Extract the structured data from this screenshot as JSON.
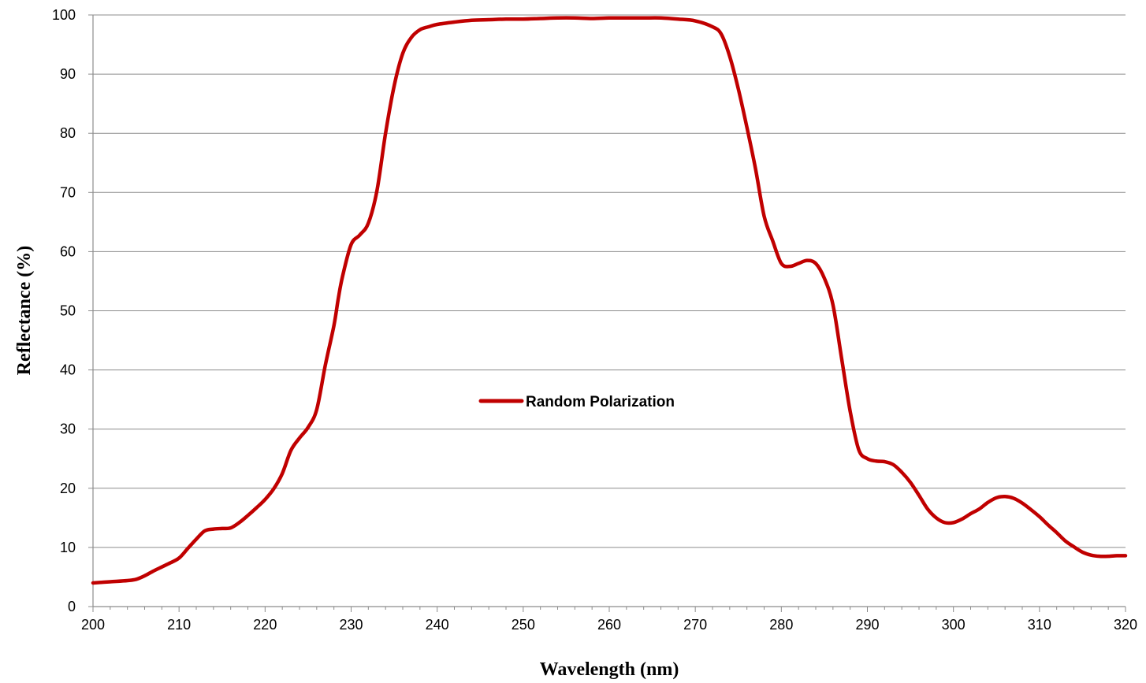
{
  "chart_data": {
    "type": "line",
    "title": "",
    "xlabel": "Wavelength (nm)",
    "ylabel": "Reflectance (%)",
    "xlim": [
      200,
      320
    ],
    "ylim": [
      0,
      100
    ],
    "x_ticks": [
      200,
      210,
      220,
      230,
      240,
      250,
      260,
      270,
      280,
      290,
      300,
      310,
      320
    ],
    "y_ticks": [
      0,
      10,
      20,
      30,
      40,
      50,
      60,
      70,
      80,
      90,
      100
    ],
    "grid": "horizontal",
    "legend_position": "center",
    "series": [
      {
        "name": "Random Polarization",
        "color": "#C00000",
        "x": [
          200,
          202,
          204,
          205,
          206,
          207,
          208,
          209,
          210,
          211,
          212,
          213,
          214,
          215,
          216,
          217,
          218,
          219,
          220,
          221,
          222,
          223,
          224,
          225,
          226,
          227,
          228,
          228.5,
          229,
          230,
          231,
          232,
          233,
          234,
          235,
          236,
          237,
          238,
          239,
          240,
          242,
          244,
          246,
          248,
          250,
          252,
          254,
          256,
          258,
          260,
          262,
          264,
          266,
          268,
          270,
          272,
          273,
          274,
          275,
          276,
          277,
          278,
          279,
          280,
          281,
          282,
          283,
          284,
          285,
          286,
          287,
          288,
          289,
          290,
          291,
          292,
          293,
          294,
          295,
          296,
          297,
          298,
          299,
          300,
          301,
          302,
          303,
          304,
          305,
          306,
          307,
          308,
          309,
          310,
          311,
          312,
          313,
          314,
          315,
          316,
          317,
          318,
          319,
          320
        ],
        "y": [
          4.0,
          4.2,
          4.4,
          4.6,
          5.2,
          6.0,
          6.7,
          7.4,
          8.2,
          9.8,
          11.4,
          12.8,
          13.1,
          13.2,
          13.3,
          14.2,
          15.4,
          16.7,
          18.1,
          19.9,
          22.5,
          26.4,
          28.5,
          30.3,
          33.3,
          40.8,
          47.5,
          52.0,
          55.8,
          61.2,
          62.8,
          64.8,
          70.3,
          80.0,
          88.0,
          93.5,
          96.2,
          97.5,
          98.0,
          98.4,
          98.8,
          99.1,
          99.2,
          99.3,
          99.3,
          99.4,
          99.5,
          99.5,
          99.4,
          99.5,
          99.5,
          99.5,
          99.5,
          99.3,
          99.0,
          98.0,
          96.8,
          93.0,
          87.5,
          81.0,
          74.0,
          66.0,
          61.8,
          58.0,
          57.5,
          58.0,
          58.5,
          58.0,
          55.5,
          51.0,
          42.0,
          33.0,
          26.5,
          25.0,
          24.6,
          24.5,
          24.0,
          22.7,
          21.0,
          18.8,
          16.5,
          15.0,
          14.2,
          14.2,
          14.8,
          15.7,
          16.5,
          17.6,
          18.4,
          18.6,
          18.3,
          17.5,
          16.4,
          15.2,
          13.8,
          12.5,
          11.1,
          10.1,
          9.2,
          8.7,
          8.5,
          8.5,
          8.6,
          8.6
        ]
      }
    ]
  }
}
